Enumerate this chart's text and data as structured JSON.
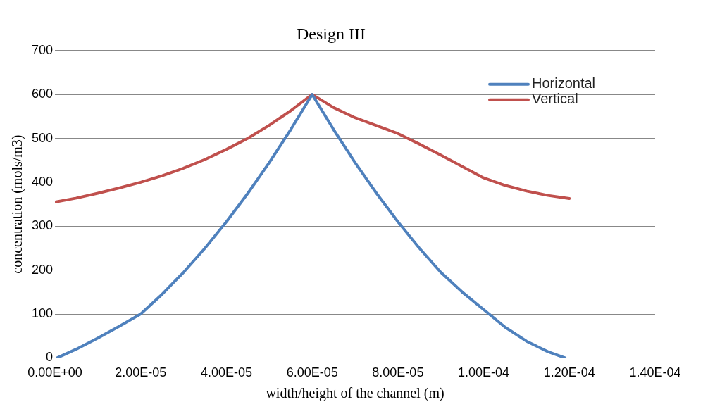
{
  "chart_data": {
    "type": "line",
    "title": "Design III",
    "xlabel": "width/height of the channel (m)",
    "ylabel": "concentration (mols/m3)",
    "xlim": [
      0,
      0.00014
    ],
    "ylim": [
      0,
      700
    ],
    "xticks": [
      {
        "value": 0,
        "label": "0.00E+00"
      },
      {
        "value": 2e-05,
        "label": "2.00E-05"
      },
      {
        "value": 4e-05,
        "label": "4.00E-05"
      },
      {
        "value": 6e-05,
        "label": "6.00E-05"
      },
      {
        "value": 8e-05,
        "label": "8.00E-05"
      },
      {
        "value": 0.0001,
        "label": "1.00E-04"
      },
      {
        "value": 0.00012,
        "label": "1.20E-04"
      },
      {
        "value": 0.00014,
        "label": "1.40E-04"
      }
    ],
    "yticks": [
      0,
      100,
      200,
      300,
      400,
      500,
      600,
      700
    ],
    "grid": "y",
    "legend": "top right",
    "marker": "none",
    "line_style": "solid",
    "series": [
      {
        "name": "Horizontal",
        "color": "#4f81bd",
        "x": [
          5e-07,
          5e-06,
          1e-05,
          1.5e-05,
          2e-05,
          2.5e-05,
          3e-05,
          3.5e-05,
          4e-05,
          4.5e-05,
          5e-05,
          5.5e-05,
          6e-05,
          6.5e-05,
          7e-05,
          7.5e-05,
          8e-05,
          8.5e-05,
          9e-05,
          9.5e-05,
          0.0001,
          0.000105,
          0.00011,
          0.000115,
          0.000119
        ],
        "values": [
          0,
          20,
          45,
          72,
          100,
          145,
          195,
          250,
          310,
          375,
          445,
          520,
          600,
          520,
          445,
          375,
          310,
          250,
          195,
          150,
          110,
          70,
          38,
          14,
          0
        ]
      },
      {
        "name": "Vertical",
        "color": "#c0504d",
        "x": [
          0,
          5e-06,
          1e-05,
          1.5e-05,
          2e-05,
          2.5e-05,
          3e-05,
          3.5e-05,
          4e-05,
          4.5e-05,
          5e-05,
          5.5e-05,
          6e-05,
          6.5e-05,
          7e-05,
          7.5e-05,
          8e-05,
          8.5e-05,
          9e-05,
          9.5e-05,
          0.0001,
          0.000105,
          0.00011,
          0.000115,
          0.00012
        ],
        "values": [
          355,
          364,
          375,
          387,
          400,
          415,
          432,
          452,
          475,
          500,
          530,
          563,
          600,
          570,
          547,
          529,
          511,
          487,
          462,
          436,
          410,
          393,
          380,
          370,
          363
        ]
      }
    ]
  }
}
